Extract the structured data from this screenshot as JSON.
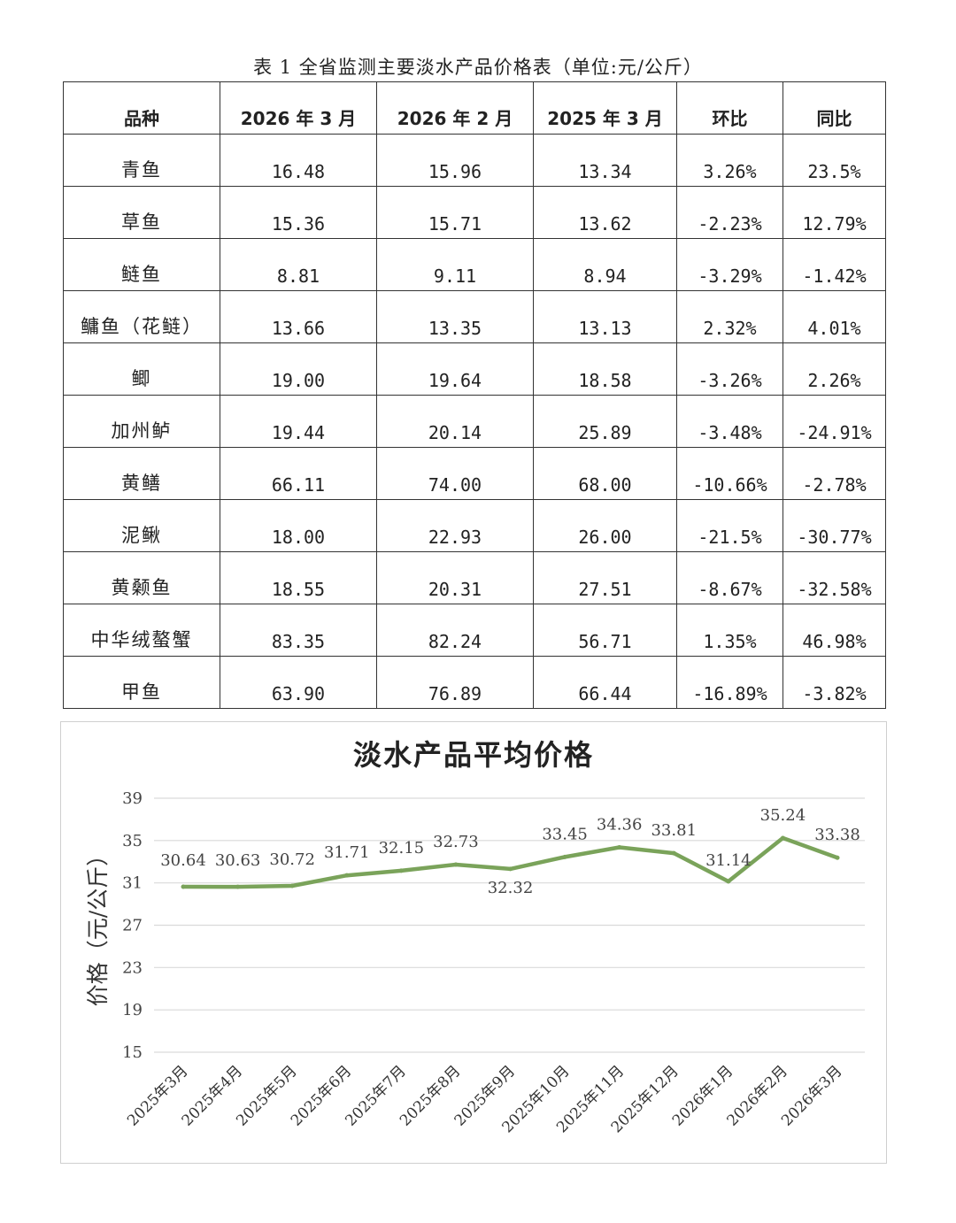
{
  "table": {
    "caption": "表 1 全省监测主要淡水产品价格表（单位:元/公斤）",
    "headers": [
      "品种",
      "2026 年 3 月",
      "2026 年 2 月",
      "2025 年 3 月",
      "环比",
      "同比"
    ],
    "rows": [
      [
        "青鱼",
        "16.48",
        "15.96",
        "13.34",
        "3.26%",
        "23.5%"
      ],
      [
        "草鱼",
        "15.36",
        "15.71",
        "13.62",
        "-2.23%",
        "12.79%"
      ],
      [
        "鲢鱼",
        "8.81",
        "9.11",
        "8.94",
        "-3.29%",
        "-1.42%"
      ],
      [
        "鳙鱼（花鲢）",
        "13.66",
        "13.35",
        "13.13",
        "2.32%",
        "4.01%"
      ],
      [
        "鲫",
        "19.00",
        "19.64",
        "18.58",
        "-3.26%",
        "2.26%"
      ],
      [
        "加州鲈",
        "19.44",
        "20.14",
        "25.89",
        "-3.48%",
        "-24.91%"
      ],
      [
        "黄鳝",
        "66.11",
        "74.00",
        "68.00",
        "-10.66%",
        "-2.78%"
      ],
      [
        "泥鳅",
        "18.00",
        "22.93",
        "26.00",
        "-21.5%",
        "-30.77%"
      ],
      [
        "黄颡鱼",
        "18.55",
        "20.31",
        "27.51",
        "-8.67%",
        "-32.58%"
      ],
      [
        "中华绒螯蟹",
        "83.35",
        "82.24",
        "56.71",
        "1.35%",
        "46.98%"
      ],
      [
        "甲鱼",
        "63.90",
        "76.89",
        "66.44",
        "-16.89%",
        "-3.82%"
      ]
    ]
  },
  "chart_data": {
    "type": "line",
    "title": "淡水产品平均价格",
    "ylabel": "价格（元/公斤）",
    "xlabel": "",
    "ylim": [
      15,
      39
    ],
    "yticks": [
      "15",
      "19",
      "23",
      "27",
      "31",
      "35",
      "39"
    ],
    "grid": true,
    "line_color": "#7aa35a",
    "categories": [
      "2025年3月",
      "2025年4月",
      "2025年5月",
      "2025年6月",
      "2025年7月",
      "2025年8月",
      "2025年9月",
      "2025年10月",
      "2025年11月",
      "2025年12月",
      "2026年1月",
      "2026年2月",
      "2026年3月"
    ],
    "values": [
      30.64,
      30.63,
      30.72,
      31.71,
      32.15,
      32.73,
      32.32,
      33.45,
      34.36,
      33.81,
      31.14,
      35.24,
      33.38
    ],
    "data_labels": [
      "30.64",
      "30.63",
      "30.72",
      "31.71",
      "32.15",
      "32.73",
      "32.32",
      "33.45",
      "34.36",
      "33.81",
      "31.14",
      "35.24",
      "33.38"
    ]
  }
}
